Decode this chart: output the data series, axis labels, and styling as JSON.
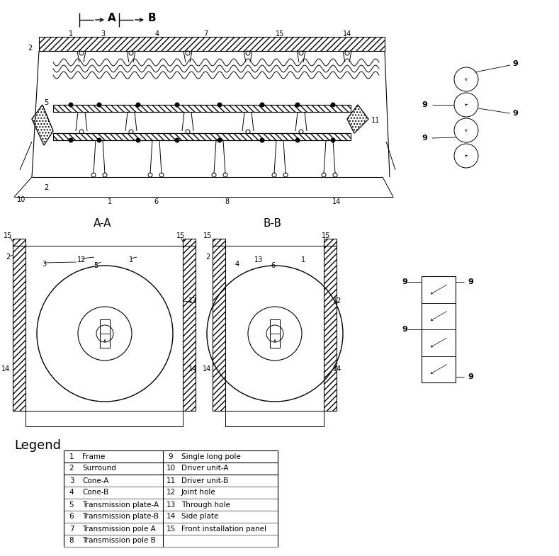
{
  "bg_color": "#ffffff",
  "legend_title": "Legend",
  "legend_items_left": [
    [
      1,
      "Frame"
    ],
    [
      2,
      "Surround"
    ],
    [
      3,
      "Cone-A"
    ],
    [
      4,
      "Cone-B"
    ],
    [
      5,
      "Transmission plate-A"
    ],
    [
      6,
      "Transmission plate-B"
    ],
    [
      7,
      "Transmission pole A"
    ],
    [
      8,
      "Transmission pole B"
    ]
  ],
  "legend_items_right": [
    [
      9,
      "Single long pole"
    ],
    [
      10,
      "Driver unit-A"
    ],
    [
      11,
      "Driver unit-B"
    ],
    [
      12,
      "Joint hole"
    ],
    [
      13,
      "Through hole"
    ],
    [
      14,
      "Side plate"
    ],
    [
      15,
      "Front installation panel"
    ]
  ]
}
